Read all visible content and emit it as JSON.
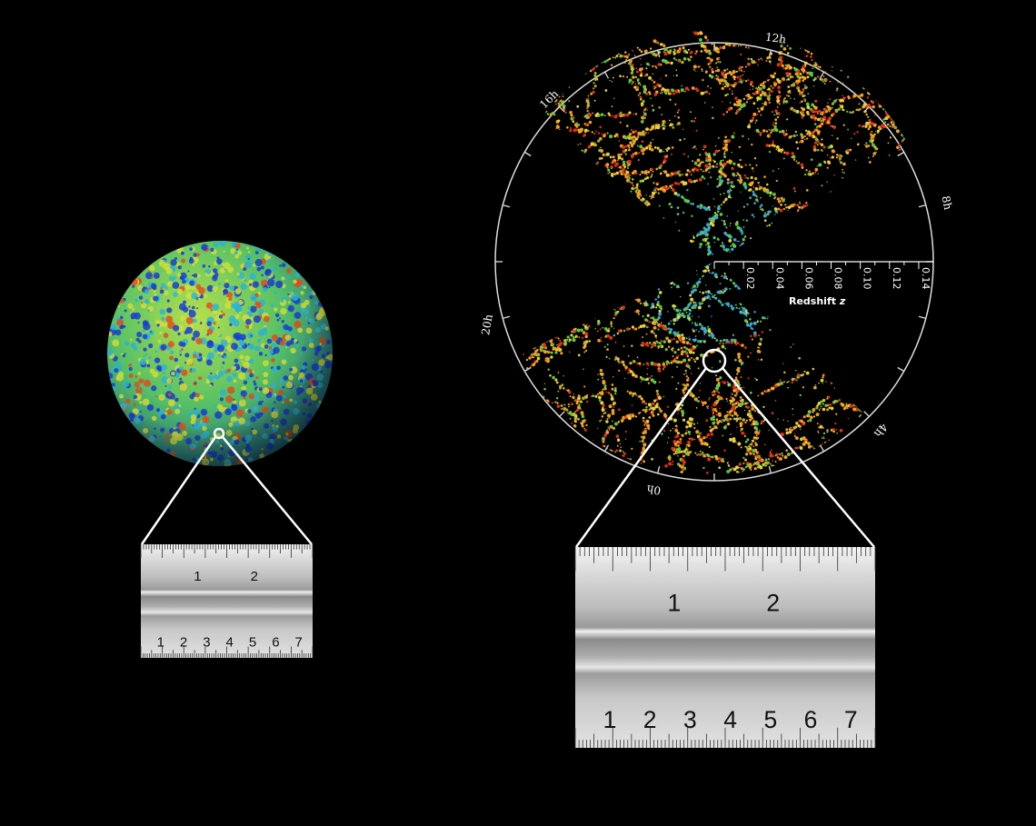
{
  "cmb_sphere": {
    "colors": {
      "cold": "#1a3fd6",
      "cool": "#2fb8d8",
      "mid": "#5ed35a",
      "warm": "#d8e23a",
      "hot": "#e8501e"
    }
  },
  "redshift_survey": {
    "hour_labels": [
      "12h",
      "16h",
      "8h",
      "20h",
      "4h",
      "0h"
    ],
    "axis_title": "Redshift",
    "axis_symbol": "z",
    "axis_ticks": [
      "0.02",
      "0.04",
      "0.06",
      "0.08",
      "0.10",
      "0.12",
      "0.14"
    ],
    "colors": {
      "red": "#e03018",
      "orange": "#f0a020",
      "yellow": "#e6d23a",
      "green": "#5cc84a",
      "cyan": "#3aa8c8"
    }
  },
  "ruler_small": {
    "top_numbers": [
      "1",
      "2"
    ],
    "bottom_numbers": [
      "1",
      "2",
      "3",
      "4",
      "5",
      "6",
      "7"
    ]
  },
  "ruler_large": {
    "top_numbers": [
      "1",
      "2"
    ],
    "bottom_numbers": [
      "1",
      "2",
      "3",
      "4",
      "5",
      "6",
      "7"
    ]
  }
}
